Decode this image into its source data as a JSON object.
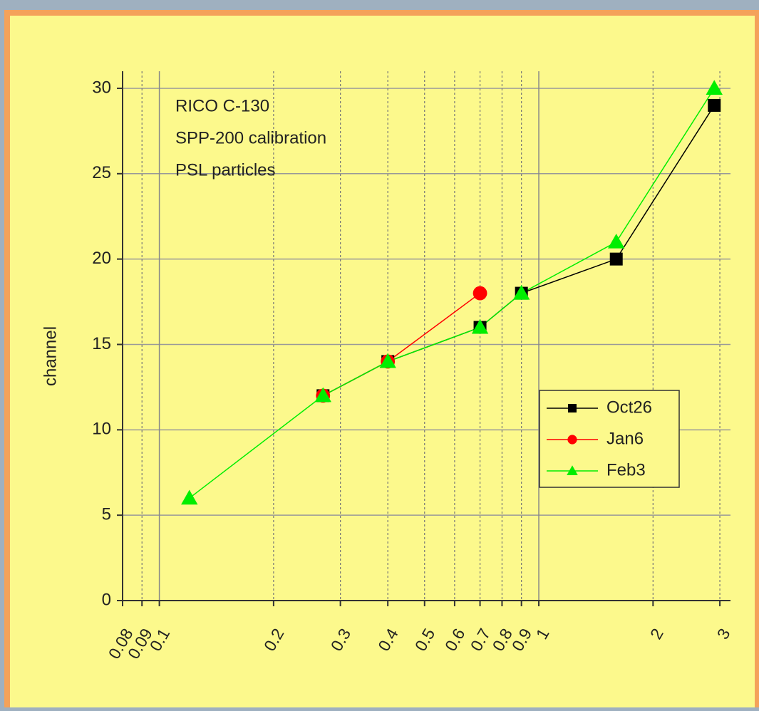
{
  "chart_data": {
    "type": "line",
    "ylabel": "channel",
    "annotations": [
      "RICO C-130",
      "SPP-200 calibration",
      "PSL particles"
    ],
    "series": [
      {
        "name": "Oct26",
        "color": "#000000",
        "marker": "square",
        "x": [
          0.27,
          0.4,
          0.7,
          0.9,
          1.6,
          2.9
        ],
        "values": [
          12,
          14,
          16,
          18,
          20,
          29
        ]
      },
      {
        "name": "Jan6",
        "color": "#ff0000",
        "marker": "circle",
        "x": [
          0.27,
          0.4,
          0.7
        ],
        "values": [
          12,
          14,
          18
        ]
      },
      {
        "name": "Feb3",
        "color": "#00ee00",
        "marker": "triangle",
        "x": [
          0.12,
          0.27,
          0.4,
          0.7,
          0.9,
          1.6,
          2.9
        ],
        "values": [
          6,
          12,
          14,
          16,
          18,
          21,
          30
        ]
      }
    ],
    "xscale": "log",
    "xlim": [
      0.08,
      3.2
    ],
    "ylim": [
      0,
      31
    ],
    "xticks": [
      0.08,
      0.09,
      0.1,
      0.2,
      0.3,
      0.4,
      0.5,
      0.6,
      0.7,
      0.8,
      0.9,
      1,
      2,
      3
    ],
    "yticks": [
      0,
      5,
      10,
      15,
      20,
      25,
      30
    ],
    "grid": true,
    "legend": "right"
  }
}
